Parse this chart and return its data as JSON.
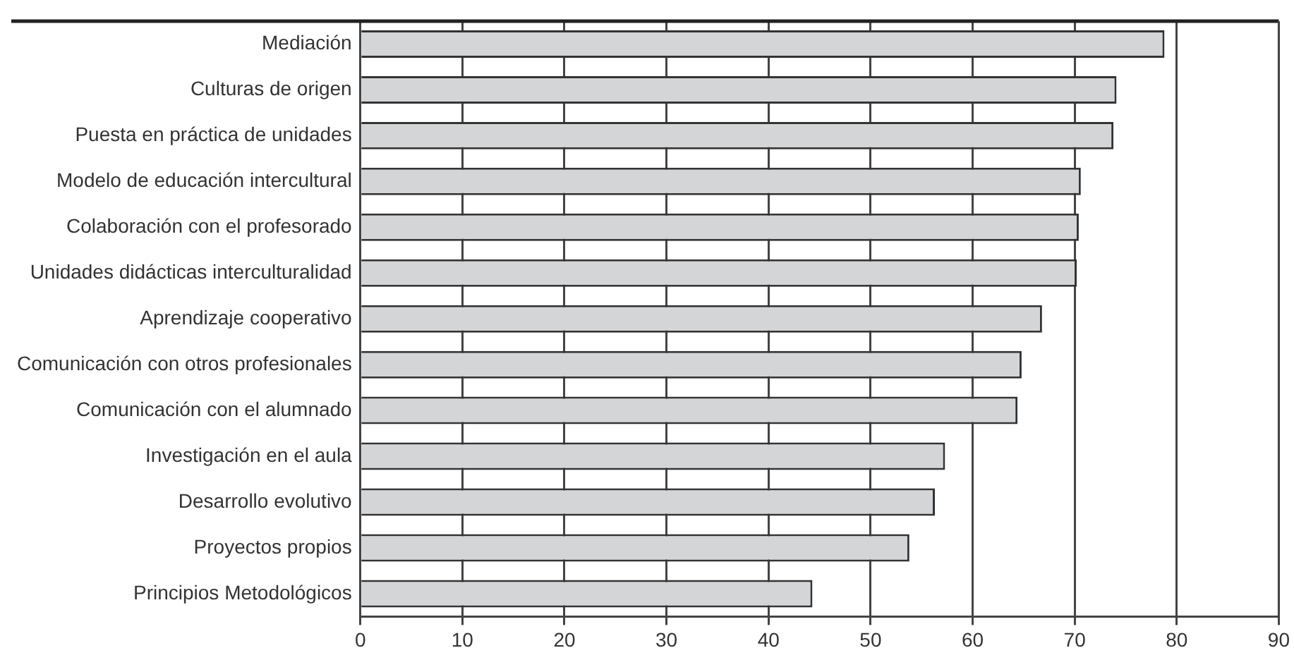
{
  "chart_data": {
    "type": "bar",
    "orientation": "horizontal",
    "categories": [
      "Mediación",
      "Culturas de origen",
      "Puesta en práctica de unidades",
      "Modelo de educación intercultural",
      "Colaboración con el profesorado",
      "Unidades didácticas interculturalidad",
      "Aprendizaje cooperativo",
      "Comunicación con otros profesionales",
      "Comunicación con el alumnado",
      "Investigación en el aula",
      "Desarrollo evolutivo",
      "Proyectos propios",
      "Principios Metodológicos"
    ],
    "values": [
      78.8,
      74.1,
      73.8,
      70.6,
      70.4,
      70.2,
      66.8,
      64.8,
      64.4,
      57.3,
      56.3,
      53.8,
      44.3
    ],
    "color": "#d4d5d7",
    "xlim": [
      0,
      90
    ],
    "xticks": [
      0,
      10,
      20,
      30,
      40,
      50,
      60,
      70,
      80,
      90
    ],
    "grid": "x",
    "legend": false
  }
}
